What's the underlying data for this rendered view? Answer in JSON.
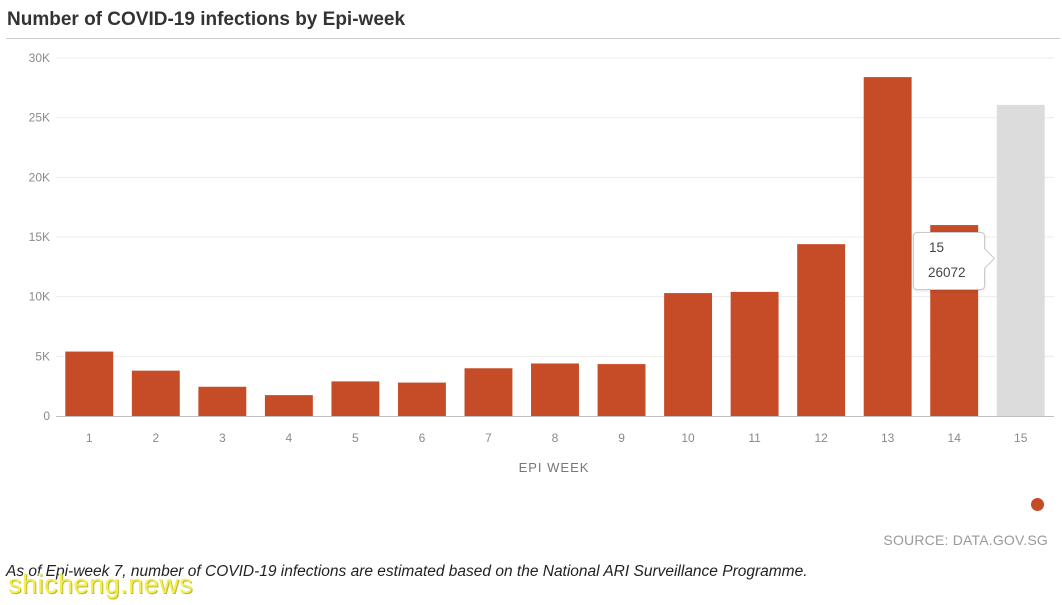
{
  "title": "Number of COVID-19 infections by Epi-week",
  "source": "SOURCE: DATA.GOV.SG",
  "footnote": "As of Epi-week 7, number of COVID-19 infections are estimated based on the National ARI Surveillance Programme.",
  "watermark": "shicheng.news",
  "tooltip": {
    "week": "15",
    "value": "26072"
  },
  "colors": {
    "bar": "#c64b27",
    "highlight": "#dcdcdc",
    "grid": "#ececec",
    "tick_text": "#8a8a8a"
  },
  "chart_data": {
    "type": "bar",
    "title": "Number of COVID-19 infections by Epi-week",
    "xlabel": "EPI WEEK",
    "ylabel": "",
    "categories": [
      "1",
      "2",
      "3",
      "4",
      "5",
      "6",
      "7",
      "8",
      "9",
      "10",
      "11",
      "12",
      "13",
      "14",
      "15"
    ],
    "values": [
      5400,
      3800,
      2450,
      1750,
      2900,
      2800,
      4000,
      4400,
      4350,
      10300,
      10400,
      14400,
      28400,
      16000,
      26072
    ],
    "highlighted_category": "15",
    "ylim": [
      0,
      30000
    ],
    "yticks": [
      0,
      5000,
      10000,
      15000,
      20000,
      25000,
      30000
    ],
    "ytick_labels": [
      "0",
      "5K",
      "10K",
      "15K",
      "20K",
      "25K",
      "30K"
    ],
    "grid": true,
    "legend": "bottom-right"
  }
}
